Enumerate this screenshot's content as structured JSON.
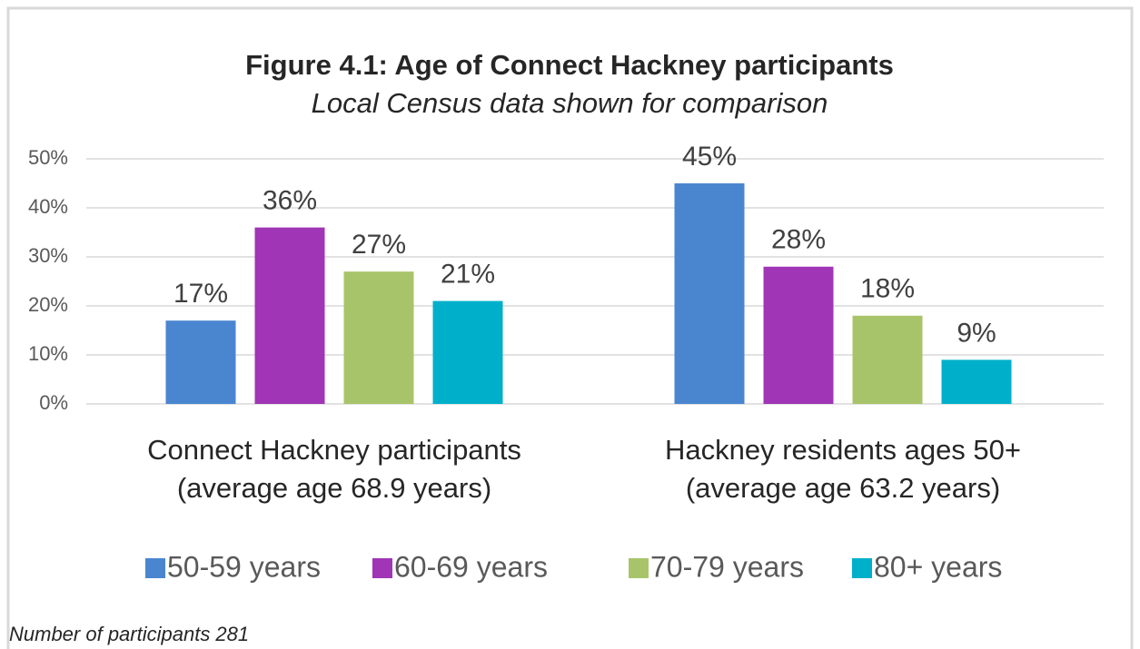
{
  "chart_data": {
    "type": "bar",
    "title": "Figure 4.1: Age of Connect Hackney participants",
    "subtitle": "Local Census data shown for comparison",
    "categories": [
      [
        "Connect Hackney participants",
        "(average age 68.9 years)"
      ],
      [
        "Hackney residents ages 50+",
        "(average age 63.2 years)"
      ]
    ],
    "series": [
      {
        "name": "50-59 years",
        "color": "#4a86d0",
        "values": [
          17,
          45
        ],
        "value_labels": [
          "17%",
          "45%"
        ]
      },
      {
        "name": "60-69 years",
        "color": "#a035b5",
        "values": [
          36,
          28
        ],
        "value_labels": [
          "36%",
          "28%"
        ]
      },
      {
        "name": "70-79 years",
        "color": "#a8c46a",
        "values": [
          27,
          18
        ],
        "value_labels": [
          "27%",
          "18%"
        ]
      },
      {
        "name": "80+ years",
        "color": "#00b0cb",
        "values": [
          21,
          9
        ],
        "value_labels": [
          "21%",
          "9%"
        ]
      }
    ],
    "ylim": [
      0,
      50
    ],
    "yticks": [
      {
        "value": 0,
        "label": "0%"
      },
      {
        "value": 10,
        "label": "10%"
      },
      {
        "value": 20,
        "label": "20%"
      },
      {
        "value": 30,
        "label": "30%"
      },
      {
        "value": 40,
        "label": "40%"
      },
      {
        "value": 50,
        "label": "50%"
      }
    ],
    "grid": true,
    "legend": "bottom",
    "footnote": "Number of participants 281"
  }
}
